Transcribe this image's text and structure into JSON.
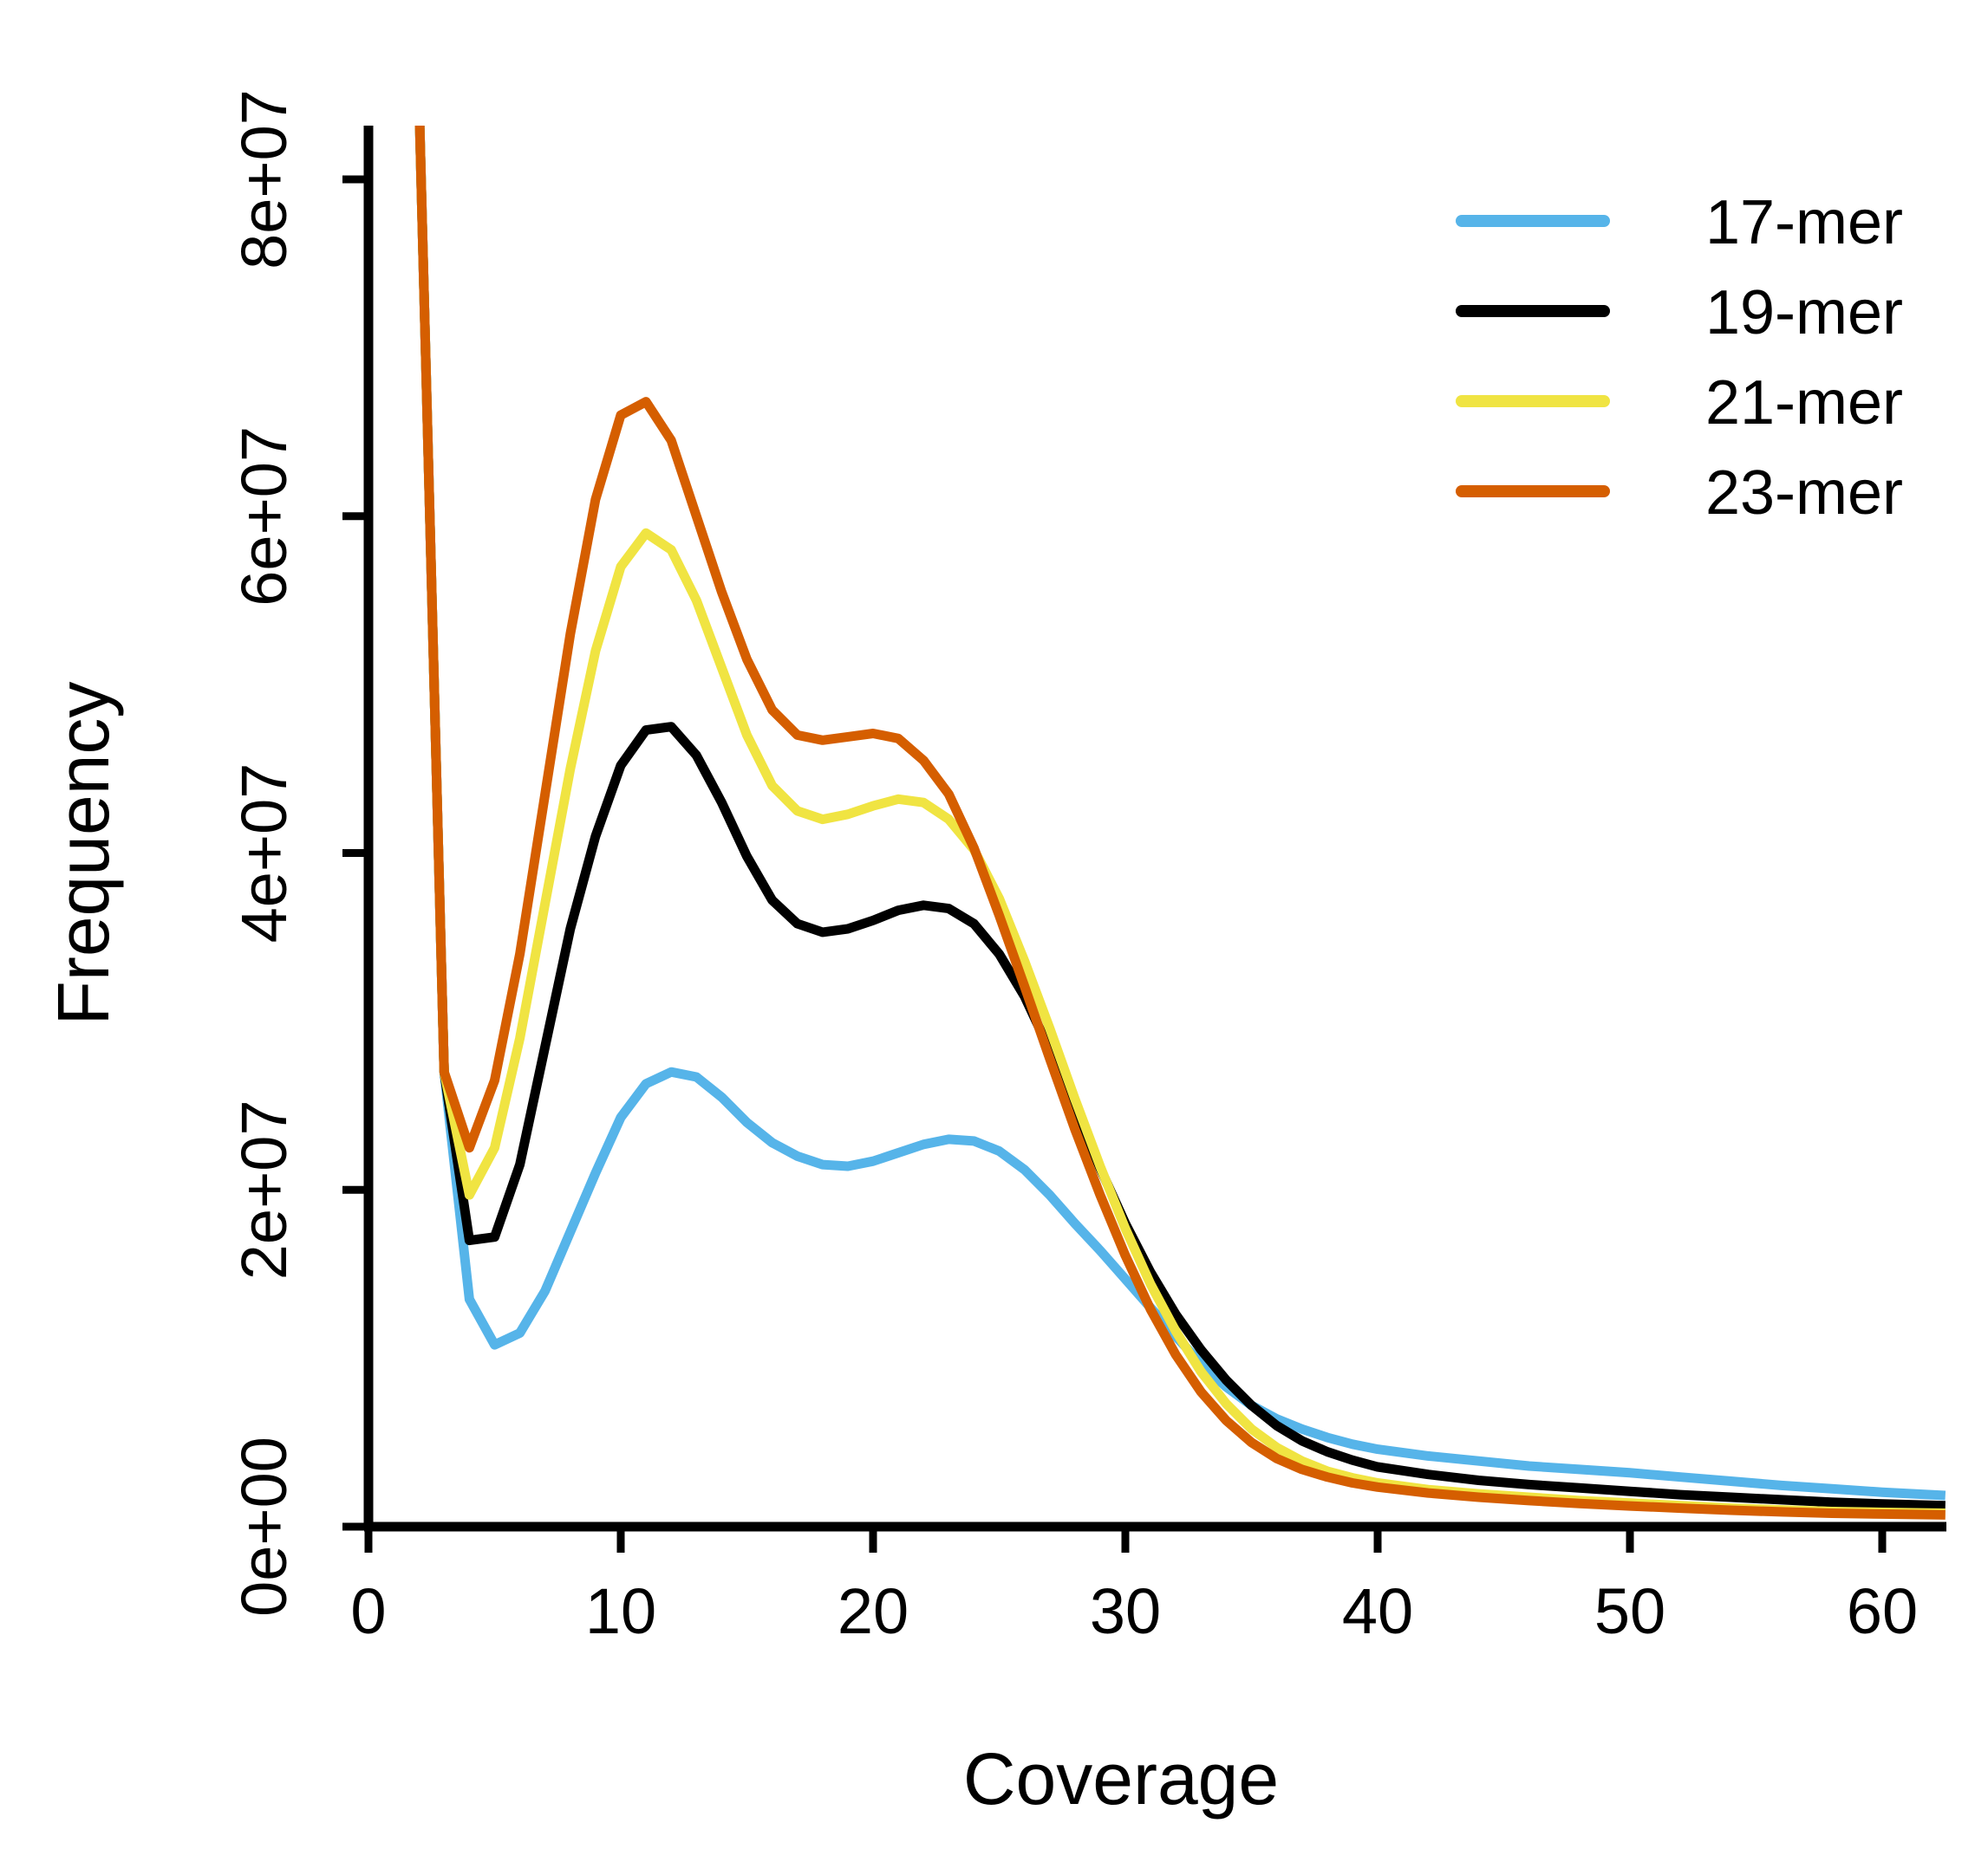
{
  "chart_data": {
    "type": "line",
    "title": "",
    "xlabel": "Coverage",
    "ylabel": "Frequency",
    "xlim": [
      0,
      62.5
    ],
    "ylim": [
      0,
      85000000
    ],
    "x_ticks": [
      0,
      10,
      20,
      30,
      40,
      50,
      60
    ],
    "x_tick_labels": [
      "0",
      "10",
      "20",
      "30",
      "40",
      "50",
      "60"
    ],
    "y_ticks": [
      0,
      20000000,
      40000000,
      60000000,
      80000000
    ],
    "y_tick_labels": [
      "0e+00",
      "2e+07",
      "4e+07",
      "6e+07",
      "8e+07"
    ],
    "grid": false,
    "legend_position": "top-right",
    "x": [
      2,
      3,
      4,
      5,
      6,
      7,
      8,
      9,
      10,
      11,
      12,
      13,
      14,
      15,
      16,
      17,
      18,
      19,
      20,
      21,
      22,
      23,
      24,
      25,
      26,
      27,
      28,
      29,
      30,
      31,
      32,
      33,
      34,
      35,
      36,
      37,
      38,
      39,
      40,
      42,
      44,
      46,
      48,
      50,
      52,
      54,
      56,
      58,
      60,
      62.5
    ],
    "series": [
      {
        "name": "17-mer",
        "color": "#56b4e9",
        "values": [
          85000000,
          27000000,
          13500000,
          10800000,
          11500000,
          14000000,
          17500000,
          21000000,
          24300000,
          26300000,
          27000000,
          26700000,
          25500000,
          24000000,
          22800000,
          22000000,
          21500000,
          21400000,
          21700000,
          22200000,
          22700000,
          23000000,
          22900000,
          22300000,
          21200000,
          19700000,
          18000000,
          16400000,
          14700000,
          13000000,
          11300000,
          9700000,
          8300000,
          7200000,
          6400000,
          5800000,
          5300000,
          4900000,
          4600000,
          4200000,
          3900000,
          3600000,
          3400000,
          3200000,
          2950000,
          2700000,
          2450000,
          2250000,
          2050000,
          1850000
        ]
      },
      {
        "name": "19-mer",
        "color": "#000000",
        "values": [
          85000000,
          27000000,
          17000000,
          17200000,
          21500000,
          28500000,
          35500000,
          41000000,
          45200000,
          47300000,
          47500000,
          45800000,
          43000000,
          39800000,
          37200000,
          35800000,
          35300000,
          35500000,
          36000000,
          36600000,
          36900000,
          36700000,
          35800000,
          34000000,
          31500000,
          28300000,
          24800000,
          21300000,
          18000000,
          15100000,
          12600000,
          10500000,
          8700000,
          7200000,
          6000000,
          5100000,
          4450000,
          3950000,
          3550000,
          3100000,
          2750000,
          2500000,
          2300000,
          2100000,
          1900000,
          1750000,
          1600000,
          1450000,
          1350000,
          1250000
        ]
      },
      {
        "name": "21-mer",
        "color": "#f0e442",
        "values": [
          85000000,
          27000000,
          19700000,
          22500000,
          29000000,
          37000000,
          45000000,
          52000000,
          57000000,
          59000000,
          58000000,
          55000000,
          51000000,
          47000000,
          44000000,
          42500000,
          42000000,
          42300000,
          42800000,
          43200000,
          43000000,
          42000000,
          40200000,
          37300000,
          33600000,
          29600000,
          25400000,
          21400000,
          17700000,
          14400000,
          11600000,
          9200000,
          7300000,
          5800000,
          4700000,
          3900000,
          3300000,
          2900000,
          2600000,
          2200000,
          1950000,
          1750000,
          1550000,
          1400000,
          1250000,
          1100000,
          1000000,
          900000,
          850000,
          800000
        ]
      },
      {
        "name": "23-mer",
        "color": "#d55e00",
        "values": [
          85000000,
          27000000,
          22500000,
          26500000,
          34000000,
          43500000,
          53000000,
          61000000,
          66000000,
          66800000,
          64500000,
          60000000,
          55500000,
          51500000,
          48500000,
          47000000,
          46700000,
          46900000,
          47100000,
          46800000,
          45500000,
          43500000,
          40300000,
          36300000,
          32100000,
          27800000,
          23600000,
          19700000,
          16100000,
          12900000,
          10200000,
          8000000,
          6300000,
          5000000,
          4050000,
          3400000,
          2950000,
          2600000,
          2350000,
          2000000,
          1750000,
          1550000,
          1380000,
          1230000,
          1100000,
          980000,
          880000,
          800000,
          750000,
          700000
        ]
      }
    ]
  }
}
